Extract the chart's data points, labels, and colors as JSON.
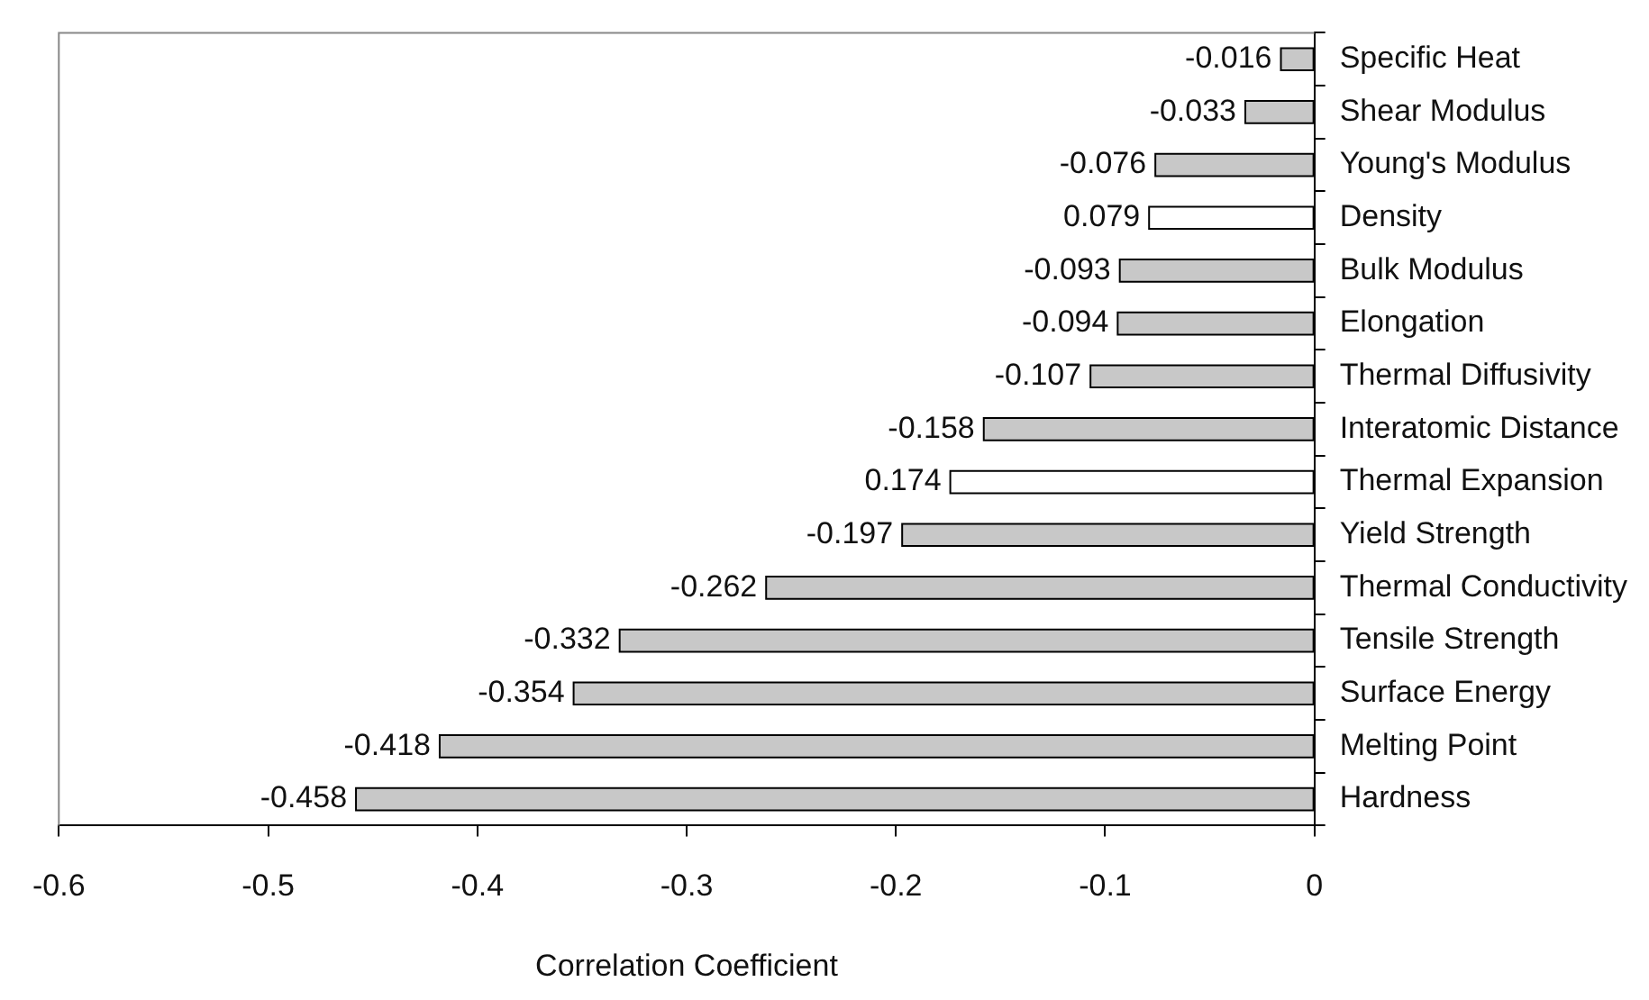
{
  "chart_data": {
    "type": "bar",
    "orientation": "horizontal",
    "xlabel": "Correlation Coefficient",
    "categories": [
      "Specific Heat",
      "Shear Modulus",
      "Young's Modulus",
      "Density",
      "Bulk Modulus",
      "Elongation",
      "Thermal Diffusivity",
      "Interatomic Distance",
      "Thermal Expansion",
      "Yield Strength",
      "Thermal Conductivity",
      "Tensile Strength",
      "Surface Energy",
      "Melting Point",
      "Hardness"
    ],
    "values": [
      -0.016,
      -0.033,
      -0.076,
      0.079,
      -0.093,
      -0.094,
      -0.107,
      -0.158,
      0.174,
      -0.197,
      -0.262,
      -0.332,
      -0.354,
      -0.418,
      -0.458
    ],
    "base": [
      0,
      0,
      0,
      -0.079,
      0,
      0,
      0,
      0,
      -0.174,
      0,
      0,
      0,
      0,
      0,
      0
    ],
    "data_labels": true,
    "colors": [
      "#c8c8c8",
      "#c8c8c8",
      "#c8c8c8",
      "#ffffff",
      "#c8c8c8",
      "#c8c8c8",
      "#c8c8c8",
      "#c8c8c8",
      "#ffffff",
      "#c8c8c8",
      "#c8c8c8",
      "#c8c8c8",
      "#c8c8c8",
      "#c8c8c8",
      "#c8c8c8"
    ],
    "xlim": [
      -0.6,
      0
    ],
    "xticks": [
      -0.6,
      -0.5,
      -0.4,
      -0.3,
      -0.2,
      -0.1,
      0
    ],
    "grid": false,
    "legend": false
  }
}
